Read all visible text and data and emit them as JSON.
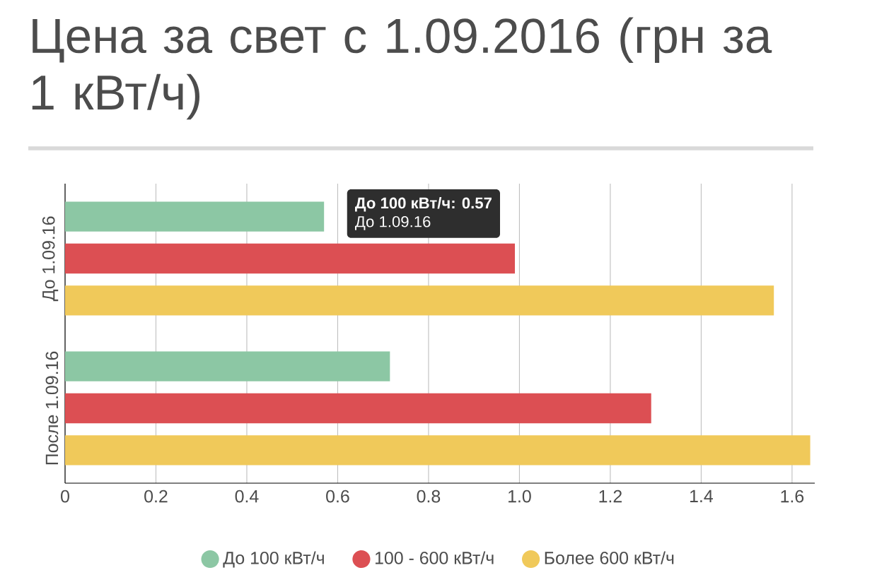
{
  "chart_data": {
    "type": "bar",
    "orientation": "horizontal",
    "title": "Цена за свет с 1.09.2016 (грн за 1 кВт/ч)",
    "categories": [
      "До 1.09.16",
      "После 1.09.16"
    ],
    "series": [
      {
        "name": "До 100 кВт/ч",
        "color": "#8cc7a4",
        "values": [
          0.57,
          0.715
        ]
      },
      {
        "name": "100 - 600 кВт/ч",
        "color": "#dc4f53",
        "values": [
          0.99,
          1.29
        ]
      },
      {
        "name": "Более 600 кВт/ч",
        "color": "#f0c95a",
        "values": [
          1.56,
          1.64
        ]
      }
    ],
    "xlim": [
      0,
      1.65
    ],
    "xticks": [
      0,
      0.2,
      0.4,
      0.6,
      0.8,
      {
        "value": 1.0,
        "label": "1.0"
      },
      1.2,
      1.4,
      1.6
    ],
    "grid": "x",
    "legend": "bottom",
    "annotations": [
      "До 100 кВт/ч: 0.57",
      "До 1.09.16"
    ]
  }
}
